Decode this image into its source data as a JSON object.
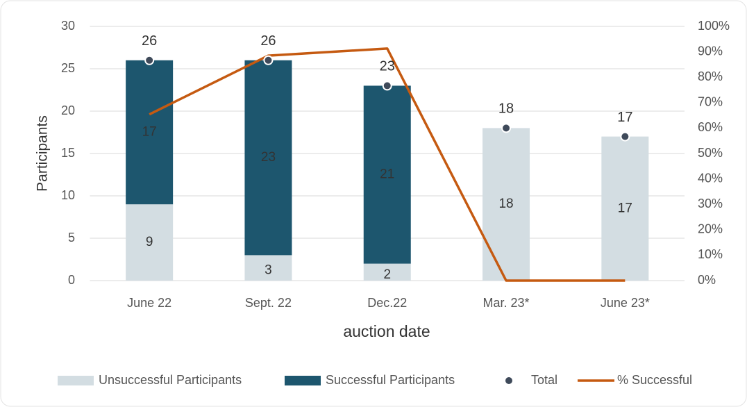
{
  "chart_data": {
    "type": "stacked_bar_line",
    "categories": [
      "June 22",
      "Sept. 22",
      "Dec.22",
      "Mar. 23*",
      "June 23*"
    ],
    "series": [
      {
        "name": "Unsuccessful Participants",
        "color": "#d3dde2",
        "values": [
          9,
          3,
          2,
          18,
          17
        ]
      },
      {
        "name": "Successful Participants",
        "color": "#1d566e",
        "values": [
          17,
          23,
          21,
          0,
          0
        ]
      },
      {
        "name": "Total",
        "color": "#3f4a5a",
        "kind": "dot",
        "values": [
          26,
          26,
          23,
          18,
          17
        ]
      },
      {
        "name": "% Successful",
        "color": "#c55a11",
        "kind": "line",
        "axis": "y2",
        "values": [
          65.4,
          88.5,
          91.3,
          0,
          0
        ]
      }
    ],
    "y_label": "Participants",
    "x_label": "auction date",
    "ylim": [
      0,
      30
    ],
    "yticks": [
      0,
      5,
      10,
      15,
      20,
      25,
      30
    ],
    "y2lim": [
      0,
      100
    ],
    "y2ticks": [
      {
        "value": 0,
        "label": "0%"
      },
      {
        "value": 10,
        "label": "10%"
      },
      {
        "value": 20,
        "label": "20%"
      },
      {
        "value": 30,
        "label": "30%"
      },
      {
        "value": 40,
        "label": "40%"
      },
      {
        "value": 50,
        "label": "50%"
      },
      {
        "value": 60,
        "label": "60%"
      },
      {
        "value": 70,
        "label": "70%"
      },
      {
        "value": 80,
        "label": "80%"
      },
      {
        "value": 90,
        "label": "90%"
      },
      {
        "value": 100,
        "label": "100%"
      }
    ],
    "grid": true,
    "legend": "bottom"
  }
}
